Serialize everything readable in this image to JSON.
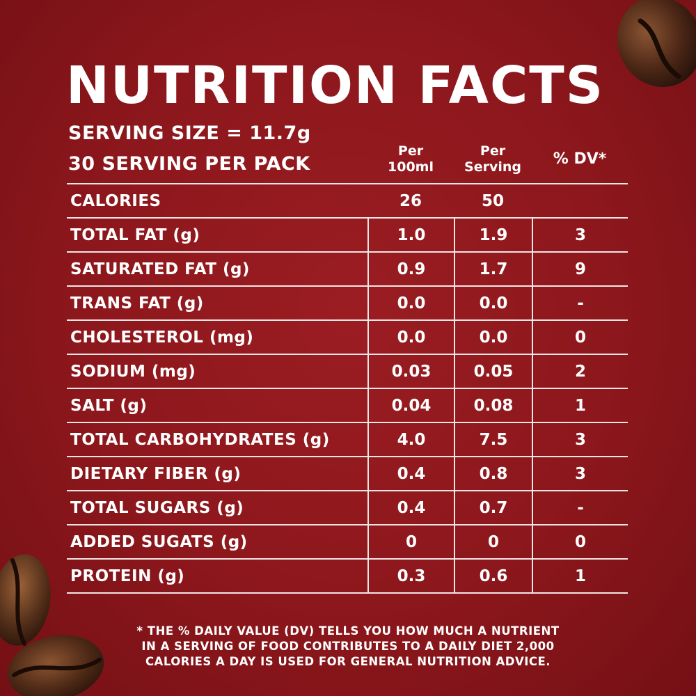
{
  "title": "NUTRITION FACTS",
  "serving_size": "SERVING SIZE = 11.7g",
  "servings_per_pack": "30 SERVING PER PACK",
  "columns": {
    "per_100ml_line1": "Per",
    "per_100ml_line2": "100ml",
    "per_serving_line1": "Per",
    "per_serving_line2": "Serving",
    "dv": "% DV*"
  },
  "rows": [
    {
      "label": "CALORIES",
      "per_100ml": "26",
      "per_serving": "50",
      "dv": ""
    },
    {
      "label": "TOTAL FAT (g)",
      "per_100ml": "1.0",
      "per_serving": "1.9",
      "dv": "3"
    },
    {
      "label": "SATURATED FAT (g)",
      "per_100ml": "0.9",
      "per_serving": "1.7",
      "dv": "9"
    },
    {
      "label": "TRANS FAT (g)",
      "per_100ml": "0.0",
      "per_serving": "0.0",
      "dv": "-"
    },
    {
      "label": "CHOLESTEROL (mg)",
      "per_100ml": "0.0",
      "per_serving": "0.0",
      "dv": "0"
    },
    {
      "label": "SODIUM (mg)",
      "per_100ml": "0.03",
      "per_serving": "0.05",
      "dv": "2"
    },
    {
      "label": "SALT (g)",
      "per_100ml": "0.04",
      "per_serving": "0.08",
      "dv": "1"
    },
    {
      "label": "TOTAL CARBOHYDRATES (g)",
      "per_100ml": "4.0",
      "per_serving": "7.5",
      "dv": "3"
    },
    {
      "label": "DIETARY FIBER (g)",
      "per_100ml": "0.4",
      "per_serving": "0.8",
      "dv": "3"
    },
    {
      "label": "TOTAL SUGARS (g)",
      "per_100ml": "0.4",
      "per_serving": "0.7",
      "dv": "-"
    },
    {
      "label": "ADDED SUGATS (g)",
      "per_100ml": "0",
      "per_serving": "0",
      "dv": "0"
    },
    {
      "label": "PROTEIN (g)",
      "per_100ml": "0.3",
      "per_serving": "0.6",
      "dv": "1"
    }
  ],
  "footnote": [
    "* THE % DAILY VALUE (DV) TELLS YOU HOW MUCH A NUTRIENT",
    "IN A SERVING OF FOOD CONTRIBUTES TO A DAILY DIET 2,000",
    "CALORIES A DAY IS USED FOR GENERAL NUTRITION ADVICE."
  ],
  "colors": {
    "background": "#8c171c",
    "text": "#ffffff",
    "rule": "#f1e6e6",
    "bean": "#4a2615"
  }
}
